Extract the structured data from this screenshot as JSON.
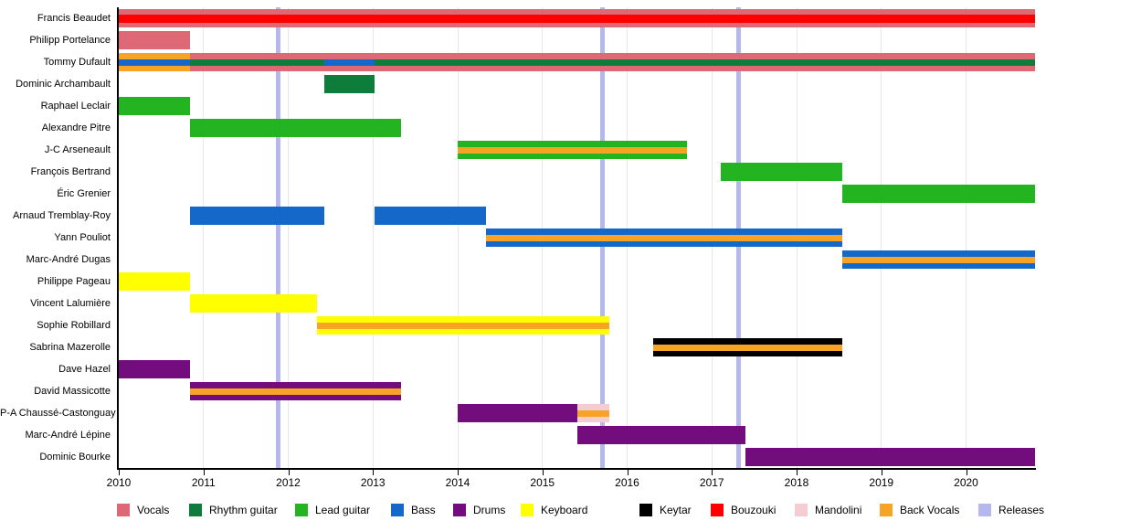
{
  "chart_data": {
    "type": "bar",
    "subtype": "membership-timeline",
    "title": "",
    "xlabel": "",
    "ylabel": "",
    "grid": true,
    "legend_position": "bottom",
    "x_axis": {
      "min": 2010,
      "max": 2020.81,
      "ticks": [
        2010,
        2011,
        2012,
        2013,
        2014,
        2015,
        2016,
        2017,
        2018,
        2019,
        2020
      ]
    },
    "releases": [
      2011.88,
      2015.71,
      2017.32
    ],
    "legend": [
      {
        "key": "vocals",
        "label": "Vocals",
        "color": "#df6877"
      },
      {
        "key": "rhythm_guitar",
        "label": "Rhythm guitar",
        "color": "#0e7d3c"
      },
      {
        "key": "lead_guitar",
        "label": "Lead guitar",
        "color": "#25b421"
      },
      {
        "key": "bass",
        "label": "Bass",
        "color": "#1568c8"
      },
      {
        "key": "drums",
        "label": "Drums",
        "color": "#730d7d"
      },
      {
        "key": "keyboard",
        "label": "Keyboard",
        "color": "#ffff00"
      },
      {
        "key": "keytar",
        "label": "Keytar",
        "color": "#000000"
      },
      {
        "key": "bouzouki",
        "label": "Bouzouki",
        "color": "#ff0000"
      },
      {
        "key": "mandolini",
        "label": "Mandolini",
        "color": "#f5ccd2"
      },
      {
        "key": "back_vocals",
        "label": "Back Vocals",
        "color": "#f7a325"
      },
      {
        "key": "releases",
        "label": "Releases",
        "color": "#b5b8ec"
      }
    ],
    "members": [
      {
        "name": "Francis Beaudet",
        "bars": [
          {
            "role": "vocals",
            "start": 2010,
            "end": 2020.81,
            "stripes": [
              {
                "role": "bouzouki",
                "start": 2010,
                "end": 2020.81,
                "h": 9
              }
            ]
          }
        ]
      },
      {
        "name": "Philipp Portelance",
        "bars": [
          {
            "role": "vocals",
            "start": 2010,
            "end": 2010.84
          }
        ]
      },
      {
        "name": "Tommy Dufault",
        "bars": [
          {
            "role": "back_vocals",
            "start": 2010,
            "end": 2010.84,
            "stripes": [
              {
                "role": "bass",
                "start": 2010,
                "end": 2010.84
              }
            ]
          },
          {
            "role": "vocals",
            "start": 2010.84,
            "end": 2020.81,
            "stripes": [
              {
                "role": "rhythm_guitar",
                "start": 2010.84,
                "end": 2012.43
              },
              {
                "role": "bass",
                "start": 2012.43,
                "end": 2013.02
              },
              {
                "role": "rhythm_guitar",
                "start": 2013.02,
                "end": 2020.81
              }
            ]
          }
        ]
      },
      {
        "name": "Dominic Archambault",
        "bars": [
          {
            "role": "rhythm_guitar",
            "start": 2012.43,
            "end": 2013.02
          }
        ]
      },
      {
        "name": "Raphael Leclair",
        "bars": [
          {
            "role": "lead_guitar",
            "start": 2010,
            "end": 2010.84
          }
        ]
      },
      {
        "name": "Alexandre Pitre",
        "bars": [
          {
            "role": "lead_guitar",
            "start": 2010.84,
            "end": 2013.33
          }
        ]
      },
      {
        "name": "J-C Arseneault",
        "bars": [
          {
            "role": "lead_guitar",
            "start": 2014.0,
            "end": 2016.71,
            "stripes": [
              {
                "role": "back_vocals",
                "start": 2014.0,
                "end": 2016.71
              }
            ]
          }
        ]
      },
      {
        "name": "François Bertrand",
        "bars": [
          {
            "role": "lead_guitar",
            "start": 2017.1,
            "end": 2018.54
          }
        ]
      },
      {
        "name": "Éric Grenier",
        "bars": [
          {
            "role": "lead_guitar",
            "start": 2018.54,
            "end": 2020.81
          }
        ]
      },
      {
        "name": "Arnaud Tremblay-Roy",
        "bars": [
          {
            "role": "bass",
            "start": 2010.84,
            "end": 2012.43
          },
          {
            "role": "bass",
            "start": 2013.02,
            "end": 2014.33
          }
        ]
      },
      {
        "name": "Yann Pouliot",
        "bars": [
          {
            "role": "bass",
            "start": 2014.33,
            "end": 2018.54,
            "stripes": [
              {
                "role": "back_vocals",
                "start": 2014.33,
                "end": 2018.54
              }
            ]
          }
        ]
      },
      {
        "name": "Marc-André Dugas",
        "bars": [
          {
            "role": "bass",
            "start": 2018.54,
            "end": 2020.81,
            "stripes": [
              {
                "role": "back_vocals",
                "start": 2018.54,
                "end": 2020.81
              }
            ]
          }
        ]
      },
      {
        "name": "Philippe Pageau",
        "bars": [
          {
            "role": "keyboard",
            "start": 2010,
            "end": 2010.84
          }
        ]
      },
      {
        "name": "Vincent Lalumière",
        "bars": [
          {
            "role": "keyboard",
            "start": 2010.84,
            "end": 2012.34
          }
        ]
      },
      {
        "name": "Sophie Robillard",
        "bars": [
          {
            "role": "keyboard",
            "start": 2012.34,
            "end": 2015.79,
            "stripes": [
              {
                "role": "back_vocals",
                "start": 2012.34,
                "end": 2015.79
              }
            ]
          }
        ]
      },
      {
        "name": "Sabrina Mazerolle",
        "bars": [
          {
            "role": "keytar",
            "start": 2016.31,
            "end": 2018.54,
            "stripes": [
              {
                "role": "back_vocals",
                "start": 2016.31,
                "end": 2018.54
              }
            ]
          }
        ]
      },
      {
        "name": "Dave Hazel",
        "bars": [
          {
            "role": "drums",
            "start": 2010,
            "end": 2010.84
          }
        ]
      },
      {
        "name": "David Massicotte",
        "bars": [
          {
            "role": "drums",
            "start": 2010.84,
            "end": 2013.33,
            "stripes": [
              {
                "role": "back_vocals",
                "start": 2010.84,
                "end": 2013.33
              }
            ]
          }
        ]
      },
      {
        "name": "P-A Chaussé-Castonguay",
        "bars": [
          {
            "role": "drums",
            "start": 2014.0,
            "end": 2015.41
          },
          {
            "role": "mandolini",
            "start": 2015.41,
            "end": 2015.79,
            "stripes": [
              {
                "role": "back_vocals",
                "start": 2015.41,
                "end": 2015.79
              }
            ]
          }
        ]
      },
      {
        "name": "Marc-André Lépine",
        "bars": [
          {
            "role": "drums",
            "start": 2015.41,
            "end": 2017.4
          }
        ]
      },
      {
        "name": "Dominic Bourke",
        "bars": [
          {
            "role": "drums",
            "start": 2017.4,
            "end": 2020.81
          }
        ]
      }
    ]
  }
}
